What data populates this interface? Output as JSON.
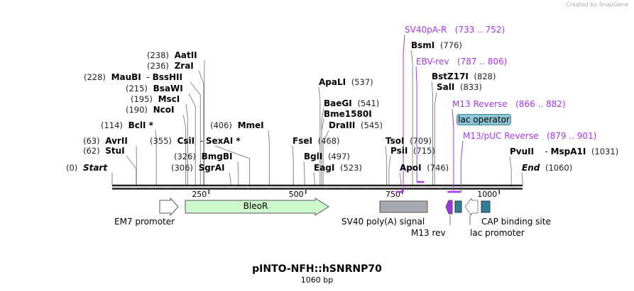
{
  "credit": "Created by SnapGene",
  "title": "pINTO-NFH::hSNRNP70",
  "length": "1060 bp",
  "total_bp": 1060,
  "ruler": [
    "250",
    "500",
    "750",
    "1000"
  ],
  "enzymes": [
    {
      "name": "Start",
      "pos": "(0)",
      "bp": 0
    },
    {
      "name": "StuI",
      "pos": "(62)",
      "bp": 62
    },
    {
      "name": "AvrII",
      "pos": "(63)",
      "bp": 63
    },
    {
      "name": "BclI *",
      "pos": "(114)",
      "bp": 114
    },
    {
      "name": "NcoI",
      "pos": "(190)",
      "bp": 190
    },
    {
      "name": "MscI",
      "pos": "(195)",
      "bp": 195
    },
    {
      "name": "BsaWI",
      "pos": "(215)",
      "bp": 215
    },
    {
      "name": "MauBI",
      "name2": "BssHII",
      "pos": "(228)",
      "bp": 228
    },
    {
      "name": "ZraI",
      "pos": "(236)",
      "bp": 236
    },
    {
      "name": "AatII",
      "pos": "(238)",
      "bp": 238
    },
    {
      "name": "SgrAI",
      "pos": "(306)",
      "bp": 306
    },
    {
      "name": "BmgBI",
      "pos": "(326)",
      "bp": 326
    },
    {
      "name": "CsiI",
      "name2": "SexAI *",
      "pos": "(355)",
      "bp": 355
    },
    {
      "name": "MmeI",
      "pos": "(406)",
      "bp": 406
    },
    {
      "name": "FseI",
      "pos": "(468)",
      "bp": 468
    },
    {
      "name": "BglI",
      "pos": "(497)",
      "bp": 497
    },
    {
      "name": "EagI",
      "pos": "(523)",
      "bp": 523
    },
    {
      "name": "ApaLI",
      "pos": "(537)",
      "bp": 537
    },
    {
      "name": "BaeGI",
      "pos": "(541)",
      "bp": 541
    },
    {
      "name": "Bme1580I",
      "pos": "",
      "bp": 541
    },
    {
      "name": "DraIII",
      "pos": "(545)",
      "bp": 545
    },
    {
      "name": "TsoI",
      "pos": "(709)",
      "bp": 709
    },
    {
      "name": "PsiI",
      "pos": "(715)",
      "bp": 715
    },
    {
      "name": "ApoI",
      "pos": "(746)",
      "bp": 746
    },
    {
      "name": "BsmI",
      "pos": "(776)",
      "bp": 776
    },
    {
      "name": "BstZ17I",
      "pos": "(828)",
      "bp": 828
    },
    {
      "name": "SalI",
      "pos": "(833)",
      "bp": 833
    },
    {
      "name": "PvuII",
      "name2": "MspA1I",
      "pos": "(1031)",
      "bp": 1031
    },
    {
      "name": "End",
      "pos": "(1060)",
      "bp": 1060
    }
  ],
  "primers": [
    {
      "name": "SV40pA-R",
      "range": "(733 .. 752)",
      "start": 733,
      "end": 752,
      "strand": "reverse"
    },
    {
      "name": "EBV-rev",
      "range": "(787 .. 806)",
      "start": 787,
      "end": 806,
      "strand": "forward"
    },
    {
      "name": "M13 Reverse",
      "range": "(866 .. 882)",
      "start": 866,
      "end": 882,
      "strand": "reverse"
    },
    {
      "name": "M13/pUC Reverse",
      "range": "(879 .. 901)",
      "start": 879,
      "end": 901,
      "strand": "reverse"
    }
  ],
  "features": {
    "em7": "EM7 promoter",
    "bleor": "BleoR",
    "sv40": "SV40 poly(A) signal",
    "m13rev": "M13 rev",
    "lacop": "lac operator",
    "lacprom": "lac promoter",
    "cap": "CAP binding site"
  },
  "colors": {
    "primer": "#a036ec",
    "bleor": "#ccf8cc",
    "sv40": "#a6aab0",
    "lac": "#2f7f9a"
  }
}
